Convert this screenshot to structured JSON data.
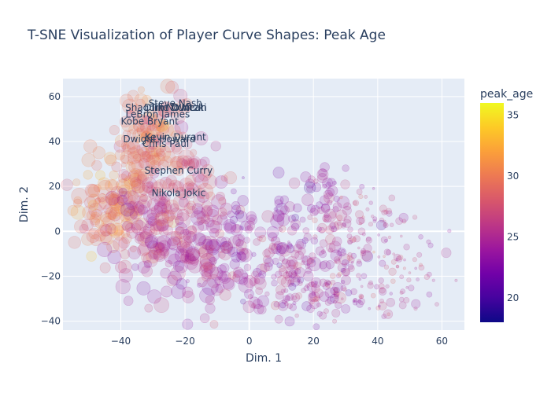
{
  "chart_data": {
    "type": "scatter",
    "title": "T-SNE Visualization of Player Curve Shapes: Peak Age",
    "xlabel": "Dim. 1",
    "ylabel": "Dim. 2",
    "xlim": [
      -58,
      67
    ],
    "ylim": [
      -44,
      68
    ],
    "x_ticks": [
      -40,
      -20,
      0,
      20,
      40,
      60
    ],
    "x_tick_labels": [
      "−40",
      "−20",
      "0",
      "20",
      "40",
      "60"
    ],
    "y_ticks": [
      -40,
      -20,
      0,
      20,
      40,
      60
    ],
    "y_tick_labels": [
      "−40",
      "−20",
      "0",
      "20",
      "40",
      "60"
    ],
    "grid": true,
    "colorbar": {
      "title": "peak_age",
      "range": [
        18,
        36
      ],
      "ticks": [
        20,
        25,
        30,
        35
      ],
      "tick_labels": [
        "20",
        "25",
        "30",
        "35"
      ],
      "colorscale": [
        "#0d0887",
        "#46039f",
        "#7201a8",
        "#9c179e",
        "#bd3786",
        "#d8576b",
        "#ed7953",
        "#fb9f3a",
        "#fdca26",
        "#f0f921"
      ]
    },
    "annotations": [
      {
        "text": "Steve Nash",
        "x": -23,
        "y": 57
      },
      {
        "text": "Shaquille O'Neal",
        "x": -26.5,
        "y": 55
      },
      {
        "text": "Tim Duncan",
        "x": -22,
        "y": 55
      },
      {
        "text": "Dirk Nowitzki",
        "x": -23,
        "y": 55
      },
      {
        "text": "LeBron James",
        "x": -28.5,
        "y": 52
      },
      {
        "text": "Kobe Bryant",
        "x": -31,
        "y": 49
      },
      {
        "text": "Kevin Durant",
        "x": -23,
        "y": 42
      },
      {
        "text": "Dwight Howard",
        "x": -28,
        "y": 41
      },
      {
        "text": "Chris Paul",
        "x": -26,
        "y": 39
      },
      {
        "text": "Stephen Curry",
        "x": -22,
        "y": 27
      },
      {
        "text": "Nikola Jokic",
        "x": -22,
        "y": 17
      }
    ],
    "clusters": [
      {
        "cx": -43,
        "cy": 10,
        "sx": 6,
        "sy": 10,
        "n": 110,
        "age": 30,
        "size": 7
      },
      {
        "cx": -35,
        "cy": 35,
        "sx": 5,
        "sy": 12,
        "n": 90,
        "age": 30,
        "size": 7
      },
      {
        "cx": -27,
        "cy": 45,
        "sx": 5,
        "sy": 8,
        "n": 50,
        "age": 29,
        "size": 7
      },
      {
        "cx": -30,
        "cy": 0,
        "sx": 7,
        "sy": 12,
        "n": 110,
        "age": 26,
        "size": 7
      },
      {
        "cx": -20,
        "cy": 20,
        "sx": 6,
        "sy": 10,
        "n": 70,
        "age": 27,
        "size": 7
      },
      {
        "cx": -15,
        "cy": -10,
        "sx": 8,
        "sy": 12,
        "n": 110,
        "age": 25,
        "size": 7
      },
      {
        "cx": 0,
        "cy": -5,
        "sx": 8,
        "sy": 12,
        "n": 90,
        "age": 24,
        "size": 6
      },
      {
        "cx": 12,
        "cy": -20,
        "sx": 8,
        "sy": 9,
        "n": 110,
        "age": 25,
        "size": 5
      },
      {
        "cx": 20,
        "cy": 10,
        "sx": 5,
        "sy": 9,
        "n": 60,
        "age": 24,
        "size": 5
      },
      {
        "cx": 28,
        "cy": -10,
        "sx": 6,
        "sy": 10,
        "n": 60,
        "age": 25,
        "size": 4
      },
      {
        "cx": 38,
        "cy": 2,
        "sx": 6,
        "sy": 10,
        "n": 60,
        "age": 26,
        "size": 3
      },
      {
        "cx": 48,
        "cy": -12,
        "sx": 6,
        "sy": 12,
        "n": 50,
        "age": 26,
        "size": 2.5
      },
      {
        "cx": 35,
        "cy": -28,
        "sx": 8,
        "sy": 4,
        "n": 40,
        "age": 25,
        "size": 3
      },
      {
        "cx": 20,
        "cy": -30,
        "sx": 8,
        "sy": 3,
        "n": 40,
        "age": 25,
        "size": 4
      }
    ]
  }
}
